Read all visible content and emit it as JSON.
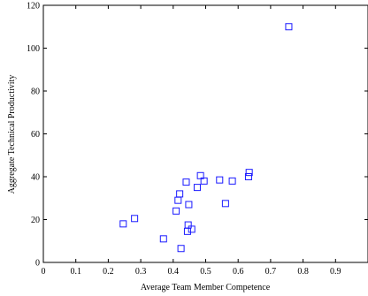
{
  "chart_data": {
    "type": "scatter",
    "title": "",
    "xlabel": "Average Team Member Competence",
    "ylabel": "Aggregate Technical Productivity",
    "xlim": [
      0,
      1
    ],
    "ylim": [
      0,
      120
    ],
    "xticks": [
      0,
      0.1,
      0.2,
      0.3,
      0.4,
      0.5,
      0.6,
      0.7,
      0.8,
      0.9
    ],
    "xtick_labels": [
      "0",
      "0.1",
      "0.2",
      "0.3",
      "0.4",
      "0.5",
      "0.6",
      "0.7",
      "0.8",
      "0.9"
    ],
    "yticks": [
      0,
      20,
      40,
      60,
      80,
      100,
      120
    ],
    "ytick_labels": [
      "0",
      "20",
      "40",
      "60",
      "80",
      "100",
      "120"
    ],
    "grid": false,
    "marker": "square",
    "marker_color": "#1a1aff",
    "series": [
      {
        "points": [
          [
            0.246,
            18
          ],
          [
            0.281,
            20.5
          ],
          [
            0.37,
            11
          ],
          [
            0.409,
            24
          ],
          [
            0.415,
            29
          ],
          [
            0.42,
            32
          ],
          [
            0.424,
            6.5
          ],
          [
            0.44,
            37.5
          ],
          [
            0.444,
            14.5
          ],
          [
            0.446,
            17.5
          ],
          [
            0.448,
            27
          ],
          [
            0.457,
            15.5
          ],
          [
            0.474,
            35
          ],
          [
            0.484,
            40.5
          ],
          [
            0.495,
            38
          ],
          [
            0.543,
            38.5
          ],
          [
            0.561,
            27.5
          ],
          [
            0.582,
            38
          ],
          [
            0.632,
            40
          ],
          [
            0.634,
            42
          ],
          [
            0.756,
            110
          ]
        ]
      }
    ]
  }
}
